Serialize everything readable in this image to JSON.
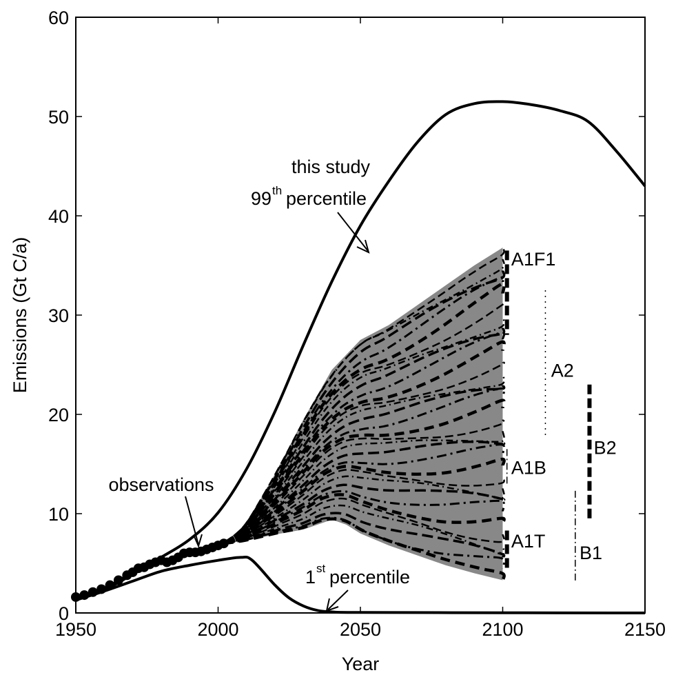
{
  "chart_data": {
    "type": "line",
    "title": "",
    "xlabel": "Year",
    "ylabel": "Emissions (Gt C/a)",
    "xlim": [
      1950,
      2150
    ],
    "ylim": [
      0,
      60
    ],
    "xticks": [
      1950,
      2000,
      2050,
      2100,
      2150
    ],
    "yticks": [
      0,
      10,
      20,
      30,
      40,
      50,
      60
    ],
    "grid": false,
    "series": [
      {
        "role": "percentile-99",
        "points": [
          [
            1950,
            1.3
          ],
          [
            1960,
            2.3
          ],
          [
            1970,
            3.9
          ],
          [
            1980,
            5.6
          ],
          [
            1990,
            7.4
          ],
          [
            2000,
            10.1
          ],
          [
            2010,
            14.5
          ],
          [
            2020,
            20.3
          ],
          [
            2030,
            27.0
          ],
          [
            2040,
            33.4
          ],
          [
            2050,
            39.0
          ],
          [
            2060,
            43.5
          ],
          [
            2070,
            47.4
          ],
          [
            2080,
            50.2
          ],
          [
            2090,
            51.3
          ],
          [
            2100,
            51.5
          ],
          [
            2110,
            51.2
          ],
          [
            2120,
            50.6
          ],
          [
            2130,
            49.5
          ],
          [
            2140,
            46.5
          ],
          [
            2150,
            43.0
          ]
        ]
      },
      {
        "role": "percentile-1",
        "points": [
          [
            1950,
            1.3
          ],
          [
            1960,
            2.2
          ],
          [
            1970,
            3.2
          ],
          [
            1980,
            4.2
          ],
          [
            1990,
            4.8
          ],
          [
            2000,
            5.3
          ],
          [
            2008,
            5.6
          ],
          [
            2012,
            5.3
          ],
          [
            2020,
            2.8
          ],
          [
            2025,
            1.5
          ],
          [
            2030,
            0.7
          ],
          [
            2035,
            0.25
          ],
          [
            2040,
            0.1
          ],
          [
            2050,
            0.05
          ],
          [
            2100,
            0.02
          ],
          [
            2150,
            0.0
          ]
        ]
      },
      {
        "role": "observations",
        "points": [
          [
            1950,
            1.6
          ],
          [
            1953,
            1.8
          ],
          [
            1956,
            2.1
          ],
          [
            1959,
            2.4
          ],
          [
            1962,
            2.8
          ],
          [
            1965,
            3.3
          ],
          [
            1968,
            3.8
          ],
          [
            1970,
            4.1
          ],
          [
            1972,
            4.5
          ],
          [
            1974,
            4.6
          ],
          [
            1976,
            4.9
          ],
          [
            1978,
            5.1
          ],
          [
            1980,
            5.3
          ],
          [
            1982,
            5.1
          ],
          [
            1984,
            5.3
          ],
          [
            1986,
            5.6
          ],
          [
            1988,
            6.0
          ],
          [
            1990,
            6.1
          ],
          [
            1992,
            6.1
          ],
          [
            1994,
            6.2
          ],
          [
            1996,
            6.4
          ],
          [
            1998,
            6.6
          ],
          [
            2000,
            6.8
          ],
          [
            2002,
            7.0
          ]
        ]
      }
    ],
    "scenario_envelope": {
      "upper": [
        [
          2002,
          7.0
        ],
        [
          2010,
          9.0
        ],
        [
          2020,
          14.0
        ],
        [
          2030,
          19.5
        ],
        [
          2040,
          24.5
        ],
        [
          2050,
          27.5
        ],
        [
          2060,
          29.0
        ],
        [
          2070,
          31.0
        ],
        [
          2080,
          33.0
        ],
        [
          2090,
          35.0
        ],
        [
          2100,
          36.8
        ]
      ],
      "lower": [
        [
          2002,
          7.0
        ],
        [
          2010,
          7.3
        ],
        [
          2020,
          7.9
        ],
        [
          2030,
          8.4
        ],
        [
          2040,
          9.4
        ],
        [
          2045,
          8.9
        ],
        [
          2050,
          8.0
        ],
        [
          2060,
          6.8
        ],
        [
          2070,
          5.8
        ],
        [
          2080,
          4.8
        ],
        [
          2090,
          4.0
        ],
        [
          2100,
          3.3
        ]
      ]
    },
    "scenario_ranges_2100": [
      {
        "label": "A1F1",
        "low": 28.0,
        "high": 36.5,
        "style": "dashed-thick"
      },
      {
        "label": "A2",
        "low": 17.5,
        "high": 32.5,
        "style": "dotted"
      },
      {
        "label": "A1B",
        "low": 13.0,
        "high": 16.5,
        "style": "dashdot"
      },
      {
        "label": "B2",
        "low": 9.5,
        "high": 23.0,
        "style": "dashed-thick"
      },
      {
        "label": "A1T",
        "low": 4.3,
        "high": 8.3,
        "style": "dashed-thick"
      },
      {
        "label": "B1",
        "low": 3.2,
        "high": 12.3,
        "style": "dashdot"
      }
    ]
  },
  "annotations": {
    "p99_line1": "this study",
    "p99_num": "99",
    "p99_sup": "th",
    "p99_word": "percentile",
    "p1_num": "1",
    "p1_sup": "st",
    "p1_word": "percentile",
    "obs": "observations",
    "colors": {
      "envelope": "#888888",
      "lines": "#000000"
    }
  }
}
